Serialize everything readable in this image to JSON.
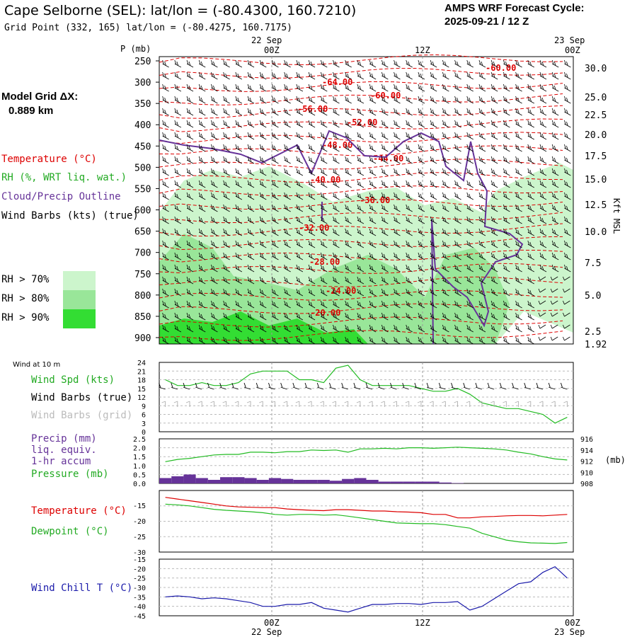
{
  "header": {
    "title": "Cape Selborne (SEL):  lat/lon = (-80.4300, 160.7210)",
    "grid_point": "Grid Point (332, 165) lat/lon = (-80.4275, 160.7175)",
    "cycle_line1": "AMPS WRF Forecast Cycle:",
    "cycle_line2": "2025-09-21 / 12  Z"
  },
  "left_legend": {
    "model_grid_label": "Model Grid ΔX:",
    "model_grid_value": "0.889 km",
    "temperature": "Temperature (°C)",
    "rh": "RH (%, WRT liq. wat.)",
    "cloud": "Cloud/Precip Outline",
    "wind_barbs": "Wind Barbs (kts) (true)",
    "rh70": "RH > 70%",
    "rh80": "RH > 80%",
    "rh90": "RH > 90%"
  },
  "colors": {
    "temperature": "#dd0000",
    "cloud": "#663399",
    "rh70": "#ccf5cc",
    "rh80": "#99e699",
    "rh90": "#33dd33",
    "wind_speed": "#22bb22",
    "precip": "#663399",
    "pressure": "#22bb22",
    "dewpoint": "#22bb22",
    "windchill": "#1a1aaa",
    "grid_barbs": "#b0b0b0",
    "grid": "#999999"
  },
  "time_axis": {
    "top_dates": [
      "22 Sep",
      "23 Sep"
    ],
    "top_hours": [
      "00Z",
      "12Z",
      "00Z"
    ],
    "bottom_hours": [
      "00Z",
      "12Z",
      "00Z"
    ],
    "bottom_dates": [
      "22 Sep",
      "23 Sep"
    ]
  },
  "sounding": {
    "p_label": "P (mb)",
    "pressure_ticks": [
      "250",
      "300",
      "350",
      "400",
      "450",
      "500",
      "550",
      "600",
      "650",
      "700",
      "750",
      "800",
      "850",
      "900"
    ],
    "kft_ticks": [
      "30.0",
      "25.0",
      "22.5",
      "20.0",
      "17.5",
      "15.0",
      "12.5",
      "10.0",
      "7.5",
      "5.0",
      "2.5",
      "1.92"
    ],
    "kft_label": "Kft MSL",
    "temp_labels": [
      "-60.00",
      "-64.00",
      "-60.00",
      "-56.00",
      "-52.00",
      "-48.00",
      "-44.00",
      "-40.00",
      "-36.00",
      "-32.00",
      "-28.00",
      "-24.00",
      "-20.00"
    ]
  },
  "wind_panel": {
    "title": "Wind at 10 m",
    "label_speed": "Wind Spd (kts)",
    "label_true": "Wind Barbs (true)",
    "label_grid": "Wind Barbs (grid)",
    "y_ticks": [
      "24",
      "21",
      "18",
      "15",
      "12",
      "9",
      "6",
      "3",
      "0"
    ]
  },
  "precip_panel": {
    "label_precip": "Precip (mm)",
    "label_liq": "liq. equiv.",
    "label_accum": "1-hr accum",
    "label_pressure": "Pressure (mb)",
    "y_ticks_left": [
      "2.5",
      "2.0",
      "1.5",
      "1.0",
      "0.5",
      "0.0"
    ],
    "y_ticks_right": [
      "916",
      "914",
      "912",
      "910",
      "908"
    ],
    "unit_right": "(mb)"
  },
  "temp_panel": {
    "label_temp": "Temperature (°C)",
    "label_dew": "Dewpoint (°C)",
    "y_ticks": [
      "-15",
      "-20",
      "-25",
      "-30"
    ]
  },
  "chill_panel": {
    "label": "Wind Chill T (°C)",
    "y_ticks": [
      "-15",
      "-20",
      "-25",
      "-30",
      "-35",
      "-40",
      "-45"
    ]
  },
  "chart_data": [
    {
      "type": "line",
      "title": "Wind at 10 m — Wind Spd (kts)",
      "x_hours_from_start": [
        0,
        1,
        2,
        3,
        4,
        5,
        6,
        7,
        8,
        9,
        10,
        11,
        12,
        13,
        14,
        15,
        16,
        17,
        18,
        19,
        20,
        21,
        22,
        23,
        24,
        25,
        26,
        27,
        28,
        29,
        30,
        31,
        32,
        33
      ],
      "series": [
        {
          "name": "Wind Spd (kts)",
          "values": [
            18,
            16,
            16,
            17,
            16,
            16,
            17,
            20,
            21,
            21,
            21,
            18,
            18,
            17,
            22,
            23,
            18,
            16,
            16,
            16,
            16,
            15,
            14,
            14,
            15,
            13,
            10,
            9,
            8,
            8,
            7,
            6,
            3,
            5
          ]
        }
      ],
      "ylim": [
        0,
        24
      ]
    },
    {
      "type": "bar",
      "title": "Precip (mm) liq. equiv. 1-hr accum",
      "series": [
        {
          "name": "Precip (mm)",
          "values": [
            0.3,
            0.4,
            0.5,
            0.3,
            0.2,
            0.35,
            0.35,
            0.3,
            0.2,
            0.3,
            0.25,
            0.2,
            0.2,
            0.2,
            0.15,
            0.25,
            0.3,
            0.2,
            0.1,
            0.1,
            0.1,
            0.1,
            0.1,
            0.05,
            0.02,
            0,
            0,
            0,
            0,
            0,
            0,
            0,
            0,
            0
          ]
        }
      ],
      "ylim": [
        0,
        2.5
      ]
    },
    {
      "type": "line",
      "title": "Pressure (mb)",
      "series": [
        {
          "name": "Pressure (mb)",
          "values": [
            911.9,
            912.3,
            912.5,
            912.8,
            913.1,
            913.2,
            913.2,
            913.6,
            913.6,
            913.5,
            913.7,
            913.7,
            914.0,
            913.9,
            914.0,
            913.6,
            914.2,
            914.2,
            914.3,
            914.2,
            914.4,
            914.4,
            914.3,
            914.4,
            914.5,
            914.4,
            914.3,
            914.2,
            914.0,
            913.6,
            913.3,
            912.8,
            912.4,
            912.2
          ]
        }
      ],
      "ylim": [
        908,
        916
      ]
    },
    {
      "type": "line",
      "title": "Temperature / Dewpoint (°C)",
      "series": [
        {
          "name": "Temperature (°C)",
          "values": [
            -14,
            -14.5,
            -15,
            -15.5,
            -16,
            -16.5,
            -16.8,
            -16.9,
            -17,
            -17,
            -17.4,
            -17.6,
            -17.8,
            -17.9,
            -17.6,
            -17.6,
            -17.8,
            -18,
            -18,
            -18.2,
            -18.3,
            -18.5,
            -19,
            -19,
            -20,
            -20,
            -19.7,
            -19.6,
            -19.4,
            -19.3,
            -19.3,
            -19.4,
            -19.2,
            -19
          ]
        },
        {
          "name": "Dewpoint (°C)",
          "values": [
            -16,
            -16.2,
            -16.5,
            -17,
            -17.5,
            -17.8,
            -18,
            -18.2,
            -18.5,
            -19,
            -19.2,
            -19,
            -19,
            -19.2,
            -19.1,
            -19.5,
            -20,
            -20.5,
            -21,
            -21.5,
            -21.6,
            -21.7,
            -21.7,
            -22,
            -22.5,
            -23,
            -24.5,
            -25.5,
            -26.5,
            -27,
            -27.3,
            -27.4,
            -27.5,
            -27.2
          ]
        }
      ],
      "ylim": [
        -30,
        -12
      ]
    },
    {
      "type": "line",
      "title": "Wind Chill T (°C)",
      "series": [
        {
          "name": "Wind Chill T (°C)",
          "values": [
            -35,
            -34.5,
            -35,
            -36,
            -35.5,
            -36,
            -37,
            -38,
            -40,
            -40,
            -39,
            -39,
            -38,
            -41,
            -42,
            -43,
            -41,
            -39,
            -39,
            -38.5,
            -38.5,
            -39,
            -38,
            -38,
            -37.5,
            -42,
            -40,
            -36,
            -32,
            -28,
            -27,
            -22,
            -19,
            -25
          ]
        }
      ],
      "ylim": [
        -45,
        -15
      ]
    }
  ]
}
